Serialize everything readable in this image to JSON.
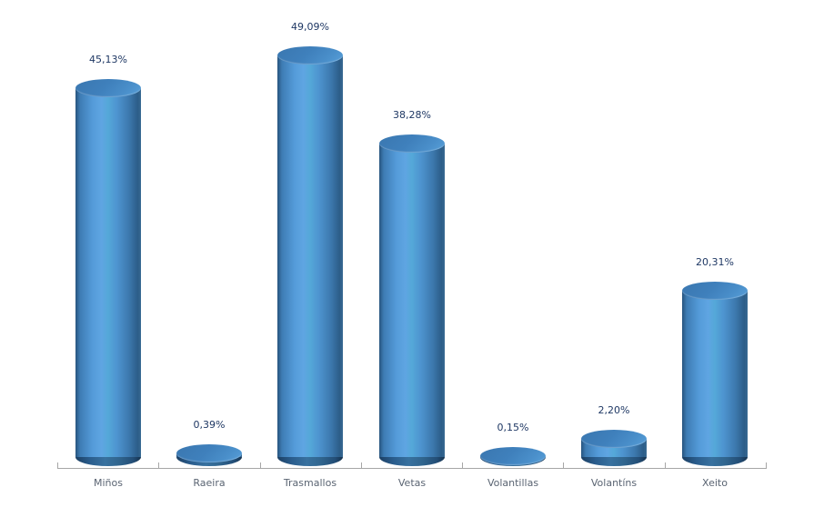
{
  "chart_data": {
    "type": "bar",
    "subtype": "3d-cylinder",
    "title": "",
    "xlabel": "",
    "ylabel": "",
    "categories": [
      "Miños",
      "Raeira",
      "Trasmallos",
      "Vetas",
      "Volantillas",
      "Volantíns",
      "Xeito"
    ],
    "values": [
      45.13,
      0.39,
      49.09,
      38.28,
      0.15,
      2.2,
      20.31
    ],
    "value_labels": [
      "45,13%",
      "0,39%",
      "49,09%",
      "38,28%",
      "0,15%",
      "2,20%",
      "20,31%"
    ],
    "ylim": [
      0,
      50
    ],
    "grid": false,
    "legend": "none",
    "colors": {
      "bar_highlight": "#5fa5e2",
      "bar_mid": "#4f94d0",
      "bar_dark_edge": "#27547e",
      "cap_top": "#3f80bc",
      "cap_bottom_dark": "#1c3f63",
      "value_label_text": "#1f3864",
      "category_label_text": "#5a6472",
      "axis": "#a6a6a6",
      "background": "#ffffff"
    }
  }
}
